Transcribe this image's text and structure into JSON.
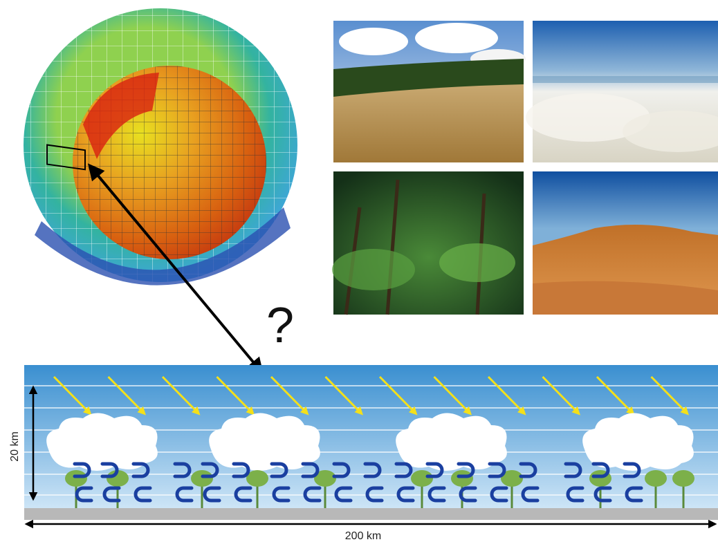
{
  "labels": {
    "question": "?",
    "height": "20 km",
    "width": "200 km"
  }
}
